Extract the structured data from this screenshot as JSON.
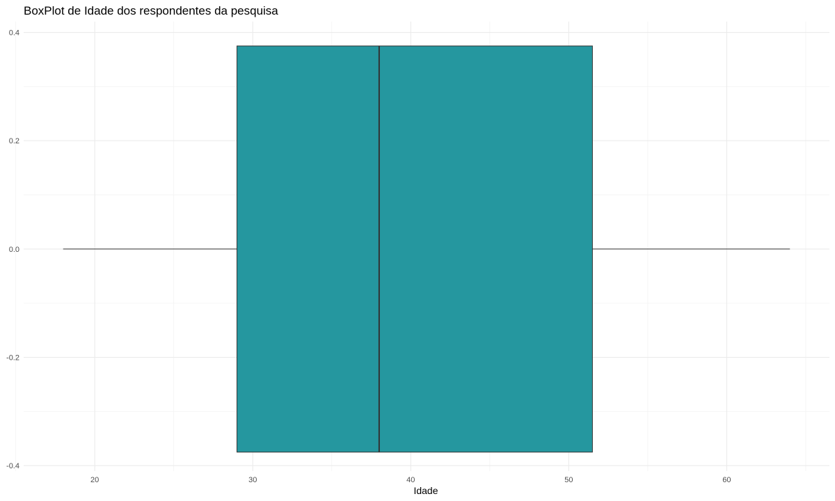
{
  "chart_data": {
    "type": "boxplot",
    "title": "BoxPlot de Idade dos respondentes da pesquisa",
    "xlabel": "Idade",
    "ylabel": "",
    "xlim": [
      15.5,
      66.5
    ],
    "ylim": [
      -0.41,
      0.42
    ],
    "x_ticks": [
      20,
      30,
      40,
      50,
      60
    ],
    "x_minor_ticks": [
      15,
      25,
      35,
      45,
      55,
      65
    ],
    "y_ticks": [
      -0.4,
      -0.2,
      0.0,
      0.2,
      0.4
    ],
    "y_tick_labels": [
      "-0.4",
      "-0.2",
      "0.0",
      "0.2",
      "0.4"
    ],
    "y_minor_ticks": [
      -0.3,
      -0.1,
      0.1,
      0.3
    ],
    "grid": true,
    "box": {
      "whisker_low": 18,
      "q1": 29,
      "median": 38,
      "q3": 51.5,
      "whisker_high": 64,
      "y_bottom": -0.375,
      "y_top": 0.375,
      "center_y": 0.0
    },
    "colors": {
      "box_fill": "#25979f",
      "box_edge": "#333333",
      "median": "#333333",
      "whisker": "#333333",
      "grid_major": "#ebebeb",
      "grid_minor": "#f3f3f3",
      "tick_label": "#4d4d4d"
    }
  }
}
